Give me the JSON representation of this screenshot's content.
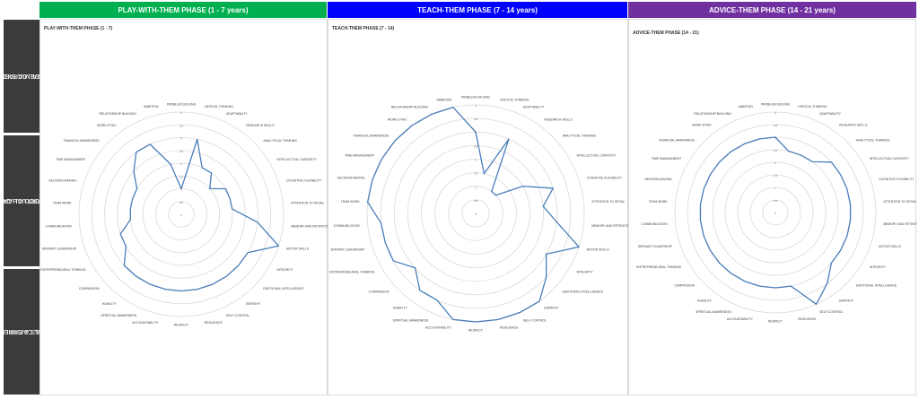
{
  "side_labels": [
    {
      "line1": "ACADEMIC EXCELLENCE",
      "line2": "(INTELLECTUAL CAPABILITIES)"
    },
    {
      "line1": "GOOD CHARACTER",
      "line2": "(EMOTIONAL & SPIRTUAL CAPABILITIES)"
    },
    {
      "line1": "BUSINESS & CAREER APTITUDE",
      "line2": "(TECHNICAL CAPABILITIES)"
    }
  ],
  "colors": {
    "play_header": "#00b050",
    "teach_header": "#0000ff",
    "advice_header": "#7030a0",
    "side_panel": "#3b3b3b",
    "series_line": "#4a7ebb",
    "grid": "#d9d9d9"
  },
  "phases": [
    {
      "header": "PLAY-WITH-THEM PHASE (1 - 7 years)",
      "chart_title": "PLAY-WITH-THEM PHASE (1 - 7)"
    },
    {
      "header": "TEACH-THEM PHASE  (7 - 14 years)",
      "chart_title": "TEACH-THEM PHASE (7 - 14)"
    },
    {
      "header": "ADVICE-THEM PHASE (14 - 21 years)",
      "chart_title": "ADVICE-THEM PHASE (14 - 21)"
    }
  ],
  "chart_data": [
    {
      "type": "radar",
      "title": "PLAY-WITH-THEM PHASE (1 - 7)",
      "rlim": [
        0,
        4
      ],
      "r_ticks": [
        "0",
        "0.5",
        "1",
        "1.5",
        "2",
        "2.5",
        "3",
        "3.5",
        "4"
      ],
      "categories": [
        "PROBLEM SOLVING",
        "CRITICAL THINKING",
        "ADAPTABILITY",
        "RESEARCH SKILLS",
        "ANALYTICAL THINKING",
        "INTELLECTUAL CURIOSITY",
        "COGNITIVE FLEXIBILITY",
        "ATTENTION TO DETAIL",
        "MEMORY AND RETENTION",
        "MOTOR SKILLS",
        "INTEGRITY",
        "EMOTIONAL INTELLIGENCE",
        "EMPATHY",
        "SELF-CONTROL",
        "RESILIENCE",
        "RESPECT",
        "ACCOUNTABILITY",
        "SPIRITUAL AWARENESS",
        "HUMILITY",
        "COMPASSION",
        "ENTREPRENEURIAL THINKING",
        "SERVANT LEADERSHIP",
        "COMMUNICATION",
        "TEAM WORK",
        "DECISION MAKING",
        "TIME MANAGEMENT",
        "FINANCIAL AWARENESS",
        "WORK ETHIC",
        "RELATIONSHIP BUILDING",
        "AMBITION"
      ],
      "values": [
        1.0,
        3.0,
        2.0,
        2.0,
        1.5,
        2.0,
        2.0,
        2.0,
        3.0,
        4.0,
        3.0,
        3.0,
        3.0,
        3.0,
        3.0,
        3.0,
        3.0,
        3.0,
        3.0,
        3.0,
        2.5,
        2.5,
        2.0,
        2.0,
        2.0,
        2.0,
        2.5,
        3.0,
        3.0,
        2.0
      ]
    },
    {
      "type": "radar",
      "title": "TEACH-THEM PHASE (7 - 14)",
      "rlim": [
        0,
        4
      ],
      "r_ticks": [
        "0",
        "0.5",
        "1",
        "1.5",
        "2",
        "2.5",
        "3",
        "3.5",
        "4"
      ],
      "categories": [
        "PROBLEM SOLVING",
        "CRITICAL THINKING",
        "ADAPTABILITY",
        "RESEARCH SKILLS",
        "ANALYTICAL THINKING",
        "INTELLECTUAL CURIOSITY",
        "COGNITIVE FLEXIBILITY",
        "ATTENTION TO DETAIL",
        "MEMORY AND RETENTION",
        "MOTOR SKILLS",
        "INTEGRITY",
        "EMOTIONAL INTELLIGENCE",
        "EMPATHY",
        "SELF-CONTROL",
        "RESILIENCE",
        "RESPECT",
        "ACCOUNTABILITY",
        "SPIRITUAL AWARENESS",
        "HUMILITY",
        "COMPASSION",
        "ENTREPRENEURIAL THINKING",
        "SERVANT LEADERSHIP",
        "COMMUNICATION",
        "TEAM WORK",
        "DECISION MAKING",
        "TIME MANAGEMENT",
        "FINANCIAL AWARENESS",
        "WORK ETHIC",
        "RELATIONSHIP BUILDING",
        "AMBITION"
      ],
      "values": [
        3.0,
        1.5,
        3.0,
        1.0,
        1.0,
        2.0,
        3.0,
        2.5,
        3.0,
        4.0,
        3.0,
        3.5,
        4.0,
        4.0,
        4.0,
        4.0,
        4.0,
        3.5,
        3.5,
        3.0,
        3.5,
        3.5,
        3.5,
        4.0,
        4.0,
        4.0,
        4.0,
        4.0,
        4.0,
        4.0
      ]
    },
    {
      "type": "radar",
      "title": "ADVICE-THEM PHASE (14 - 21)",
      "rlim": [
        0,
        4
      ],
      "r_ticks": [
        "0",
        "0.5",
        "1",
        "1.5",
        "2",
        "2.5",
        "3",
        "3.5",
        "4"
      ],
      "categories": [
        "PROBLEM SOLVING",
        "CRITICAL THINKING",
        "ADAPTABILITY",
        "RESEARCH SKILLS",
        "ANALYTICAL THINKING",
        "INTELLECTUAL CURIOSITY",
        "COGNITIVE FLEXIBILITY",
        "ATTENTION TO DETAIL",
        "MEMORY AND RETENTION",
        "MOTOR SKILLS",
        "INTEGRITY",
        "EMOTIONAL INTELLIGENCE",
        "EMPATHY",
        "SELF-CONTROL",
        "RESILIENCE",
        "RESPECT",
        "ACCOUNTABILITY",
        "SPIRITUAL AWARENESS",
        "HUMILITY",
        "COMPASSION",
        "ENTREPRENEURIAL THINKING",
        "SERVANT LEADERSHIP",
        "COMMUNICATION",
        "TEAM WORK",
        "DECISION MAKING",
        "TIME MANAGEMENT",
        "FINANCIAL AWARENESS",
        "WORK ETHIC",
        "RELATIONSHIP BUILDING",
        "AMBITION"
      ],
      "values": [
        3.0,
        2.5,
        2.5,
        2.5,
        3.0,
        3.0,
        3.0,
        3.0,
        3.0,
        3.0,
        3.0,
        3.0,
        3.5,
        4.0,
        3.0,
        3.0,
        3.0,
        3.0,
        3.0,
        3.0,
        3.0,
        3.0,
        3.0,
        3.0,
        3.0,
        3.0,
        3.0,
        3.0,
        3.0,
        3.0
      ]
    }
  ]
}
